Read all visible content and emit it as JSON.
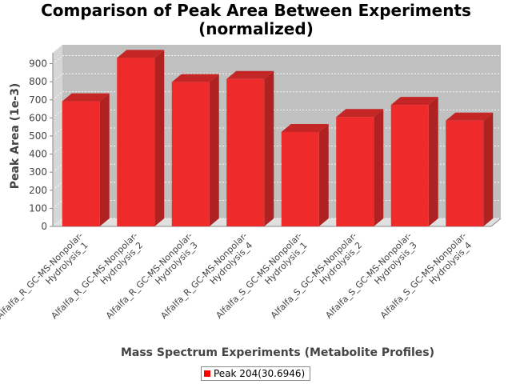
{
  "chart_data": {
    "type": "bar",
    "title_lines": [
      "Comparison of Peak Area Between Experiments",
      "(normalized)"
    ],
    "xlabel": "Mass Spectrum Experiments (Metabolite Profiles)",
    "ylabel": "Peak Area (1e-3)",
    "ylim": [
      0,
      960
    ],
    "yticks": [
      "0",
      "100",
      "200",
      "300",
      "400",
      "500",
      "600",
      "700",
      "800",
      "900"
    ],
    "categories": [
      [
        "Alfalfa_R_GC-MS-Nonpolar-",
        "Hydrolysis_1"
      ],
      [
        "Alfalfa_R_GC-MS-Nonpolar-",
        "Hydrolysis_2"
      ],
      [
        "Alfalfa_R_GC-MS-Nonpolar-",
        "Hydrolysis_3"
      ],
      [
        "Alfalfa_R_GC-MS-Nonpolar-",
        "Hydrolysis_4"
      ],
      [
        "Alfalfa_S_GC-MS-Nonpolar-",
        "Hydrolysis_1"
      ],
      [
        "Alfalfa_S_GC-MS-Nonpolar-",
        "Hydrolysis_2"
      ],
      [
        "Alfalfa_S_GC-MS-Nonpolar-",
        "Hydrolysis_3"
      ],
      [
        "Alfalfa_S_GC-MS-Nonpolar-",
        "Hydrolysis_4"
      ]
    ],
    "series": [
      {
        "name": "Peak 204(30.6946)",
        "values": [
          692,
          932,
          798,
          815,
          522,
          605,
          672,
          585
        ]
      }
    ],
    "grid": true,
    "legend_position": "bottom",
    "colors": {
      "bar_front": "#ee2a2a",
      "bar_side": "#b02222",
      "bar_top": "#c42626",
      "plot_bg": "#c0c0c0",
      "plot_side": "#d6d6d6",
      "plot_floor": "#e0e0e0",
      "legend_swatch": "#ff0000"
    }
  }
}
